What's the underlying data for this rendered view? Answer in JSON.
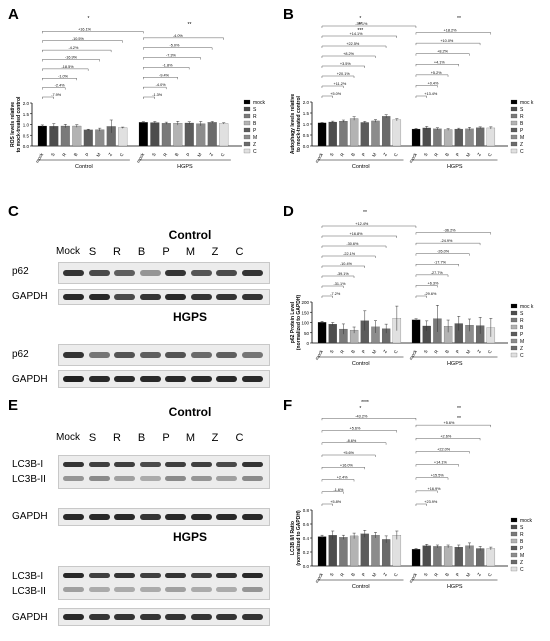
{
  "panels": {
    "A": "A",
    "B": "B",
    "C": "C",
    "D": "D",
    "E": "E",
    "F": "F"
  },
  "legend_items": [
    "mock",
    "S",
    "R",
    "B",
    "P",
    "M",
    "Z",
    "C"
  ],
  "legend_items_D": [
    "moc k",
    "S",
    "R",
    "B",
    "P",
    "M",
    "Z",
    "C"
  ],
  "legend_items_B": [
    "moc k",
    "S",
    "R",
    "B",
    "P",
    "M",
    "Z",
    "C"
  ],
  "bar_colors": [
    "#000000",
    "#4d4d4d",
    "#7a7a7a",
    "#b3b3b3",
    "#5c5c5c",
    "#8c8c8c",
    "#6b6b6b",
    "#e0e0e0"
  ],
  "groups": [
    "Control",
    "HGPS"
  ],
  "chart_data": [
    {
      "id": "A",
      "type": "bar",
      "ylabel": "ROS levels relative to mock-treated control",
      "ylim": [
        0,
        2.0
      ],
      "yticks": [
        0.0,
        0.5,
        1.0,
        1.5,
        2.0
      ],
      "categories": [
        "mock",
        "S",
        "R",
        "B",
        "P",
        "M",
        "Z",
        "C"
      ],
      "series": [
        {
          "name": "Control",
          "values": [
            0.93,
            0.92,
            0.93,
            0.93,
            0.75,
            0.76,
            0.91,
            0.85
          ],
          "errors": [
            0.05,
            0.12,
            0.08,
            0.06,
            0.03,
            0.07,
            0.3,
            0.03
          ]
        },
        {
          "name": "HGPS",
          "values": [
            1.1,
            1.09,
            1.06,
            1.06,
            1.07,
            1.04,
            1.1,
            1.05
          ],
          "errors": [
            0.03,
            0.05,
            0.05,
            0.09,
            0.06,
            0.1,
            0.04,
            0.03
          ]
        }
      ],
      "annotations_control": [
        "-7.9%",
        "-2.4%",
        "-1.0%",
        "-18.5%",
        "-16.9%",
        "-4.2%",
        "-10.5%",
        "+16.1%"
      ],
      "annotations_hgps": [
        "-1.3%",
        "-4.0%",
        "-9.4%",
        "-1.8%",
        "-7.3%",
        "-5.0%",
        "-4.0%"
      ],
      "sig_hgps": "**",
      "sig_cross": "*"
    },
    {
      "id": "B",
      "type": "bar",
      "ylabel": "Autophagy levels relative to mock-treated control",
      "ylim": [
        0,
        2.0
      ],
      "yticks": [
        0.0,
        0.5,
        1.0,
        1.5,
        2.0
      ],
      "categories": [
        "mock",
        "S",
        "R",
        "B",
        "P",
        "M",
        "Z",
        "C"
      ],
      "series": [
        {
          "name": "Control",
          "values": [
            1.05,
            1.09,
            1.13,
            1.25,
            1.07,
            1.14,
            1.35,
            1.19
          ],
          "errors": [
            0.02,
            0.04,
            0.05,
            0.08,
            0.05,
            0.06,
            0.07,
            0.05
          ]
        },
        {
          "name": "HGPS",
          "values": [
            0.77,
            0.82,
            0.78,
            0.75,
            0.77,
            0.78,
            0.83,
            0.82
          ],
          "errors": [
            0.03,
            0.07,
            0.05,
            0.04,
            0.04,
            0.07,
            0.04,
            0.05
          ]
        }
      ],
      "annotations_control": [
        "+5.0%",
        "+11.2%",
        "+20.1%",
        "+3.5%",
        "+8.2%",
        "+22.5%",
        "+14.1%",
        "-39.1%"
      ],
      "annotations_hgps": [
        "+13.4%",
        "+0.4%",
        "+5.2%",
        "+4.1%",
        "+8.2%",
        "+10.0%",
        "+18.2%"
      ],
      "sig_control": [
        "*",
        "**",
        "***"
      ],
      "sig_hgps": "**"
    },
    {
      "id": "D",
      "type": "bar",
      "ylabel": "p62 Protein Level (normalized to GAPDH)",
      "ylim": [
        0,
        200
      ],
      "yticks": [
        0,
        50,
        100,
        150,
        200
      ],
      "categories": [
        "mock",
        "S",
        "R",
        "B",
        "P",
        "M",
        "Z",
        "C"
      ],
      "series": [
        {
          "name": "Control",
          "values": [
            101,
            92,
            68,
            63,
            109,
            79,
            70,
            120
          ],
          "errors": [
            5,
            8,
            25,
            15,
            48,
            30,
            22,
            60
          ]
        },
        {
          "name": "HGPS",
          "values": [
            113,
            83,
            119,
            82,
            95,
            87,
            85,
            75
          ],
          "errors": [
            5,
            25,
            65,
            30,
            35,
            30,
            40,
            45
          ]
        }
      ],
      "annotations_control": [
        "-7.2%",
        "-31.1%",
        "-39.1%",
        "-10.4%",
        "-22.1%",
        "-30.6%",
        "+16.8%",
        "+12.4%"
      ],
      "annotations_hgps": [
        "-29.6%",
        "+6.3%",
        "-27.7%",
        "-17.7%",
        "-26.0%",
        "-24.9%",
        "-36.2%"
      ],
      "sig_cross": "**"
    },
    {
      "id": "F",
      "type": "bar",
      "ylabel": "LC3B II/I Ratio (normalized to GAPDH)",
      "ylim": [
        0,
        0.8
      ],
      "yticks": [
        0.0,
        0.2,
        0.4,
        0.6,
        0.8
      ],
      "categories": [
        "mock",
        "S",
        "R",
        "B",
        "P",
        "M",
        "Z",
        "C"
      ],
      "series": [
        {
          "name": "Control",
          "values": [
            0.42,
            0.44,
            0.41,
            0.43,
            0.46,
            0.44,
            0.38,
            0.44
          ],
          "errors": [
            0.02,
            0.06,
            0.03,
            0.04,
            0.05,
            0.04,
            0.05,
            0.06
          ]
        },
        {
          "name": "HGPS",
          "values": [
            0.24,
            0.29,
            0.28,
            0.28,
            0.27,
            0.29,
            0.25,
            0.25
          ],
          "errors": [
            0.01,
            0.02,
            0.02,
            0.02,
            0.03,
            0.04,
            0.03,
            0.02
          ]
        }
      ],
      "annotations_control": [
        "+5.8%",
        "-1.6%",
        "+2.4%",
        "+16.0%",
        "+5.6%",
        "-8.6%",
        "+5.6%",
        "-43.2%"
      ],
      "annotations_hgps": [
        "+23.9%",
        "+16.9%",
        "+15.5%",
        "+14.1%",
        "+22.0%",
        "+2.6%",
        "+5.6%"
      ],
      "sig_control": "*",
      "sig_hgps": [
        "**",
        "**"
      ],
      "sig_cross": "****"
    }
  ],
  "western_C": {
    "title_control": "Control",
    "title_hgps": "HGPS",
    "lanes": [
      "Mock",
      "S",
      "R",
      "B",
      "P",
      "M",
      "Z",
      "C"
    ],
    "row1": "p62",
    "row2": "GAPDH"
  },
  "western_E": {
    "title_control": "Control",
    "title_hgps": "HGPS",
    "lanes": [
      "Mock",
      "S",
      "R",
      "B",
      "P",
      "M",
      "Z",
      "C"
    ],
    "row1a": "LC3B-I",
    "row1b": "LC3B-II",
    "row2": "GAPDH"
  }
}
